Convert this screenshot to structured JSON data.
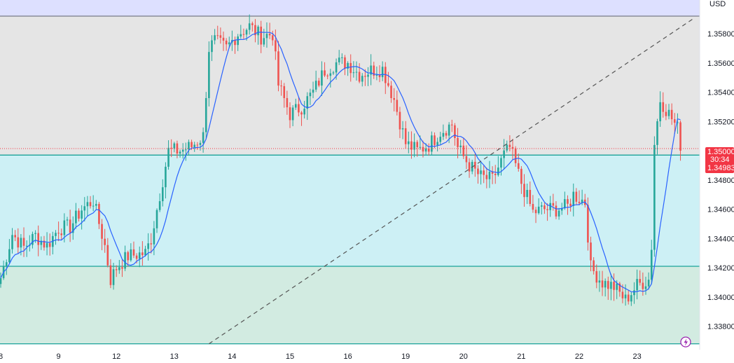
{
  "axis": {
    "currency_label": "USD"
  },
  "colors": {
    "up": "#26a69a",
    "down": "#ef5350",
    "ma_line": "#2962ff",
    "zone_top": "#dde0ff",
    "zone_grey": "#e5e5e5",
    "zone_cyan": "#cdf0f5",
    "zone_green": "#d2ebe1",
    "level_line": "#1aa39a",
    "trend_line": "#555555",
    "price_label": "#f23645"
  },
  "price_labels": {
    "current": "1.35000",
    "countdown": "30:34",
    "second": "1.34983"
  },
  "icons": {
    "lightning": "lightning-icon"
  },
  "chart_data": {
    "type": "candlestick",
    "title": "",
    "currency": "USD",
    "x_ticks": [
      {
        "label": "8",
        "bar": 0
      },
      {
        "label": "9",
        "bar": 20
      },
      {
        "label": "12",
        "bar": 40
      },
      {
        "label": "13",
        "bar": 60
      },
      {
        "label": "14",
        "bar": 80
      },
      {
        "label": "15",
        "bar": 100
      },
      {
        "label": "16",
        "bar": 120
      },
      {
        "label": "19",
        "bar": 140
      },
      {
        "label": "20",
        "bar": 160
      },
      {
        "label": "21",
        "bar": 180
      },
      {
        "label": "22",
        "bar": 200
      },
      {
        "label": "23",
        "bar": 220
      }
    ],
    "y_ticks": [
      "1.35800",
      "1.35600",
      "1.35400",
      "1.35200",
      "1.35000",
      "1.34800",
      "1.34600",
      "1.34400",
      "1.34200",
      "1.34000",
      "1.33800"
    ],
    "ylim": [
      1.3364,
      1.3603
    ],
    "levels": [
      1.3592,
      1.3497,
      1.3421,
      1.3368
    ],
    "trend_line": {
      "from": {
        "bar": 72,
        "price": 1.3368
      },
      "to": {
        "bar": 240,
        "price": 1.3591
      }
    },
    "current_price": 1.35,
    "series": [
      {
        "name": "price",
        "bar_count": 236,
        "anchors": [
          [
            0,
            1.3413
          ],
          [
            4,
            1.3443
          ],
          [
            8,
            1.3434
          ],
          [
            12,
            1.3442
          ],
          [
            16,
            1.3435
          ],
          [
            20,
            1.3447
          ],
          [
            24,
            1.3448
          ],
          [
            28,
            1.346
          ],
          [
            32,
            1.3466
          ],
          [
            36,
            1.3435
          ],
          [
            38,
            1.3412
          ],
          [
            40,
            1.342
          ],
          [
            44,
            1.3428
          ],
          [
            50,
            1.343
          ],
          [
            52,
            1.344
          ],
          [
            56,
            1.348
          ],
          [
            58,
            1.35
          ],
          [
            62,
            1.35
          ],
          [
            66,
            1.3503
          ],
          [
            70,
            1.351
          ],
          [
            72,
            1.357
          ],
          [
            74,
            1.3575
          ],
          [
            78,
            1.357
          ],
          [
            82,
            1.358
          ],
          [
            86,
            1.3585
          ],
          [
            90,
            1.3578
          ],
          [
            94,
            1.358
          ],
          [
            96,
            1.3545
          ],
          [
            100,
            1.3525
          ],
          [
            104,
            1.353
          ],
          [
            108,
            1.354
          ],
          [
            112,
            1.3555
          ],
          [
            116,
            1.356
          ],
          [
            120,
            1.356
          ],
          [
            124,
            1.3552
          ],
          [
            128,
            1.3555
          ],
          [
            132,
            1.3556
          ],
          [
            136,
            1.3535
          ],
          [
            140,
            1.3505
          ],
          [
            144,
            1.35
          ],
          [
            148,
            1.3504
          ],
          [
            152,
            1.3513
          ],
          [
            156,
            1.3518
          ],
          [
            158,
            1.3502
          ],
          [
            162,
            1.349
          ],
          [
            166,
            1.3482
          ],
          [
            170,
            1.348
          ],
          [
            174,
            1.3497
          ],
          [
            176,
            1.3502
          ],
          [
            180,
            1.3478
          ],
          [
            184,
            1.3458
          ],
          [
            188,
            1.346
          ],
          [
            192,
            1.346
          ],
          [
            196,
            1.3462
          ],
          [
            198,
            1.347
          ],
          [
            202,
            1.3465
          ],
          [
            204,
            1.342
          ],
          [
            208,
            1.341
          ],
          [
            212,
            1.3407
          ],
          [
            216,
            1.3398
          ],
          [
            220,
            1.3408
          ],
          [
            224,
            1.3412
          ],
          [
            225,
            1.3435
          ],
          [
            226,
            1.3505
          ],
          [
            228,
            1.3535
          ],
          [
            232,
            1.3522
          ],
          [
            236,
            1.3508
          ],
          [
            240,
            1.351
          ],
          [
            244,
            1.3506
          ],
          [
            248,
            1.3498
          ]
        ]
      },
      {
        "name": "moving average",
        "type": "line"
      }
    ]
  }
}
